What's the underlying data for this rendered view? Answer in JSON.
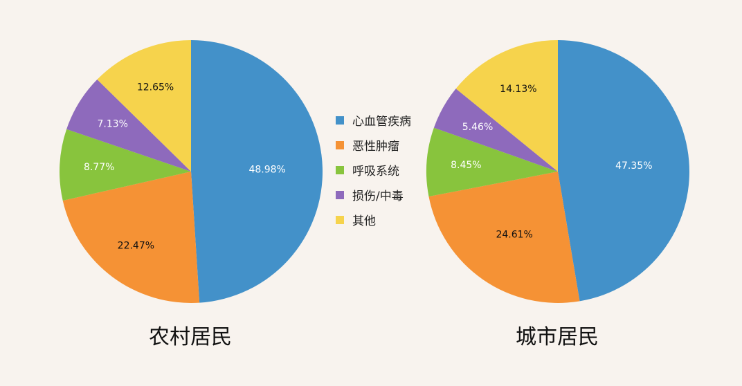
{
  "chart_data": [
    {
      "type": "pie",
      "title": "农村居民",
      "categories": [
        "心血管疾病",
        "恶性肿瘤",
        "呼吸系统",
        "损伤/中毒",
        "其他"
      ],
      "values": [
        48.98,
        22.47,
        8.77,
        7.13,
        12.65
      ],
      "labels": [
        "48.98%",
        "22.47%",
        "8.77%",
        "7.13%",
        "12.65%"
      ],
      "legend": "center"
    },
    {
      "type": "pie",
      "title": "城市居民",
      "categories": [
        "心血管疾病",
        "恶性肿瘤",
        "呼吸系统",
        "损伤/中毒",
        "其他"
      ],
      "values": [
        47.35,
        24.61,
        8.45,
        5.46,
        14.13
      ],
      "labels": [
        "47.35%",
        "24.61%",
        "8.45%",
        "5.46%",
        "14.13%"
      ],
      "legend": "center"
    }
  ],
  "legend": [
    {
      "label": "心血管疾病",
      "color": "#4391c9"
    },
    {
      "label": "恶性肿瘤",
      "color": "#f59235"
    },
    {
      "label": "呼吸系统",
      "color": "#88c43d"
    },
    {
      "label": "损伤/中毒",
      "color": "#8e6abc"
    },
    {
      "label": "其他",
      "color": "#f6d34c"
    }
  ],
  "colors": {
    "心血管疾病": "#4391c9",
    "恶性肿瘤": "#f59235",
    "呼吸系统": "#88c43d",
    "损伤/中毒": "#8e6abc",
    "其他": "#f6d34c"
  }
}
